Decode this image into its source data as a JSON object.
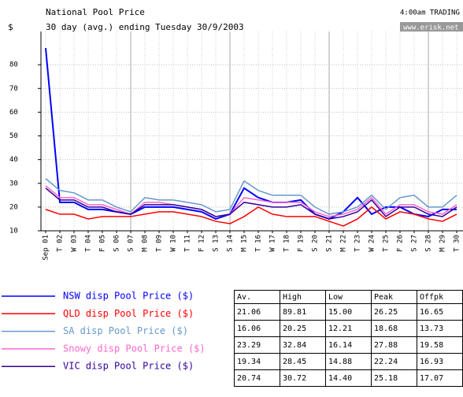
{
  "chart_data": {
    "type": "line",
    "title": "National Pool Price",
    "subtitle": "30 day (avg.) ending Tuesday 30/9/2003",
    "y_label": "$",
    "timestamp": "4:00am TRADING",
    "source": "www.erisk.net",
    "categories": [
      "Sep 01",
      "T 02",
      "W 03",
      "T 04",
      "F 05",
      "S 06",
      "S 07",
      "M 08",
      "T 09",
      "W 10",
      "T 11",
      "F 12",
      "S 13",
      "S 14",
      "M 15",
      "T 16",
      "W 17",
      "T 18",
      "F 19",
      "S 20",
      "S 21",
      "M 22",
      "T 23",
      "W 24",
      "T 25",
      "F 26",
      "S 27",
      "S 28",
      "M 29",
      "T 30"
    ],
    "ylim": [
      10,
      94
    ],
    "yticks": [
      10,
      20,
      30,
      40,
      50,
      60,
      70,
      80
    ],
    "grid": true,
    "series": [
      {
        "name": "NSW disp Pool Price ($)",
        "color": "#0000ff",
        "values": [
          87,
          22,
          22,
          19,
          19,
          18,
          17,
          20,
          20,
          20,
          19,
          18,
          15,
          17,
          28,
          24,
          22,
          22,
          23,
          17,
          15,
          18,
          24,
          17,
          20,
          20,
          17,
          16,
          19,
          19
        ]
      },
      {
        "name": "QLD disp Pool Price ($)",
        "color": "#ff0000",
        "values": [
          19,
          17,
          17,
          15,
          16,
          16,
          16,
          17,
          18,
          18,
          17,
          16,
          14,
          13,
          16,
          20,
          17,
          16,
          16,
          16,
          14,
          12,
          15,
          20,
          15,
          18,
          17,
          15,
          14,
          17
        ]
      },
      {
        "name": "SA disp Pool Price ($)",
        "color": "#6699cc",
        "values": [
          32,
          27,
          26,
          23,
          23,
          20,
          18,
          24,
          23,
          23,
          22,
          21,
          18,
          19,
          31,
          27,
          25,
          25,
          25,
          20,
          17,
          18,
          20,
          25,
          19,
          24,
          25,
          20,
          20,
          25
        ]
      },
      {
        "name": "Snowy disp Pool Price ($)",
        "color": "#ff66cc",
        "values": [
          29,
          24,
          24,
          21,
          21,
          19,
          17,
          22,
          22,
          21,
          20,
          19,
          16,
          17,
          24,
          23,
          22,
          22,
          22,
          18,
          16,
          17,
          19,
          24,
          17,
          21,
          21,
          18,
          17,
          21
        ]
      },
      {
        "name": "VIC disp Pool Price ($)",
        "color": "#330099",
        "values": [
          28,
          23,
          23,
          20,
          20,
          18,
          17,
          21,
          21,
          21,
          20,
          19,
          16,
          17,
          22,
          21,
          20,
          20,
          21,
          17,
          15,
          16,
          18,
          23,
          16,
          20,
          20,
          17,
          16,
          20
        ]
      }
    ]
  },
  "table": {
    "header": [
      "Av.",
      "High",
      "Low",
      "Peak",
      "Offpk"
    ],
    "rows": [
      [
        "21.06",
        "89.81",
        "15.00",
        "26.25",
        "16.65"
      ],
      [
        "16.06",
        "20.25",
        "12.21",
        "18.68",
        "13.73"
      ],
      [
        "23.29",
        "32.84",
        "16.14",
        "27.88",
        "19.58"
      ],
      [
        "19.34",
        "28.45",
        "14.88",
        "22.24",
        "16.93"
      ],
      [
        "20.74",
        "30.72",
        "14.40",
        "25.18",
        "17.07"
      ]
    ]
  }
}
